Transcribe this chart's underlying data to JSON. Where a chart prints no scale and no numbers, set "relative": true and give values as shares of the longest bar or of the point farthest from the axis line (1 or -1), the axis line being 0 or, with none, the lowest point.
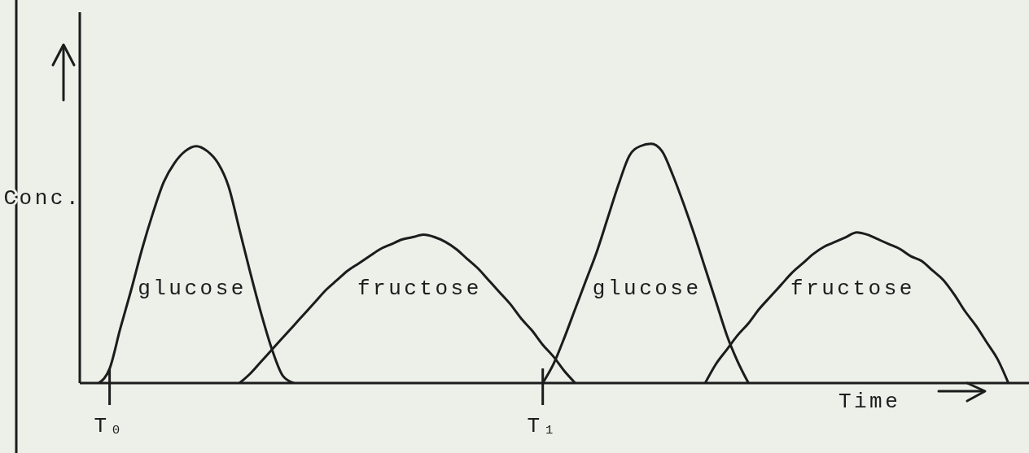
{
  "chart_data": {
    "type": "line",
    "relative": true,
    "ylabel": "Conc.",
    "xlabel": "Time",
    "legend": false,
    "marker": "none",
    "line_style": "solid",
    "categories": [
      null,
      null,
      "T₀",
      null,
      null,
      null,
      null,
      null,
      null,
      null,
      null,
      null,
      null,
      null,
      null,
      null,
      null,
      null,
      null,
      null,
      null,
      null,
      null,
      null,
      null,
      null,
      null,
      null,
      null,
      null,
      null,
      null,
      null,
      null,
      null,
      null,
      null,
      null,
      null,
      null,
      null,
      null,
      "T₁",
      null,
      null,
      null,
      null,
      null,
      null,
      null,
      null,
      null,
      null,
      null,
      null,
      null,
      null,
      null,
      null,
      null,
      null,
      null,
      null,
      null,
      null,
      null,
      null,
      null,
      null,
      null,
      null,
      null,
      null,
      null,
      null,
      null,
      null,
      null,
      null,
      null,
      null,
      null,
      null,
      null,
      null,
      null,
      null
    ],
    "series": [
      {
        "name": "glucose",
        "color": "#1c1c1c",
        "values": [
          null,
          0,
          0.06,
          0.23,
          0.39,
          0.56,
          0.71,
          0.84,
          0.92,
          0.97,
          0.99,
          0.97,
          0.92,
          0.82,
          0.64,
          0.46,
          0.29,
          0.14,
          0.03,
          0,
          null,
          null,
          null,
          null,
          null,
          null,
          null,
          null,
          null,
          null,
          null,
          null,
          null,
          null,
          null,
          null,
          null,
          null,
          null,
          null,
          null,
          null,
          null,
          null,
          null,
          null,
          null,
          null,
          null,
          null,
          null,
          null,
          null,
          null,
          null,
          null,
          null,
          null,
          null,
          null,
          null,
          null,
          null,
          null,
          null,
          null,
          null,
          null,
          null,
          null,
          null,
          null,
          null,
          null,
          null,
          null,
          null,
          null,
          null,
          null,
          null,
          null,
          null,
          null,
          null,
          null,
          null
        ]
      },
      {
        "name": "fructose",
        "color": "#1c1c1c",
        "values": [
          null,
          null,
          null,
          null,
          null,
          null,
          null,
          null,
          null,
          null,
          null,
          null,
          null,
          null,
          0,
          0.04,
          0.09,
          0.14,
          0.19,
          0.24,
          0.29,
          0.34,
          0.39,
          0.43,
          0.47,
          0.5,
          0.53,
          0.56,
          0.58,
          0.6,
          0.61,
          0.62,
          0.61,
          0.59,
          0.56,
          0.52,
          0.48,
          0.43,
          0.38,
          0.33,
          0.27,
          0.22,
          0.16,
          0.11,
          0.05,
          0,
          null,
          null,
          null,
          null,
          null,
          null,
          null,
          null,
          null,
          null,
          null,
          null,
          null,
          null,
          null,
          null,
          null,
          null,
          null,
          null,
          null,
          null,
          null,
          null,
          null,
          null,
          null,
          null,
          null,
          null,
          null,
          null,
          null,
          null,
          null,
          null,
          null,
          null,
          null,
          null,
          null
        ]
      },
      {
        "name": "glucose",
        "color": "#1c1c1c",
        "values": [
          null,
          null,
          null,
          null,
          null,
          null,
          null,
          null,
          null,
          null,
          null,
          null,
          null,
          null,
          null,
          null,
          null,
          null,
          null,
          null,
          null,
          null,
          null,
          null,
          null,
          null,
          null,
          null,
          null,
          null,
          null,
          null,
          null,
          null,
          null,
          null,
          null,
          null,
          null,
          null,
          null,
          null,
          0,
          0.08,
          0.19,
          0.31,
          0.43,
          0.55,
          0.69,
          0.83,
          0.95,
          0.99,
          1,
          0.97,
          0.87,
          0.75,
          0.62,
          0.48,
          0.34,
          0.2,
          0.09,
          0,
          null,
          null,
          null,
          null,
          null,
          null,
          null,
          null,
          null,
          null,
          null,
          null,
          null,
          null,
          null,
          null,
          null,
          null,
          null,
          null,
          null,
          null,
          null,
          null,
          null
        ]
      },
      {
        "name": "fructose",
        "color": "#1c1c1c",
        "values": [
          null,
          null,
          null,
          null,
          null,
          null,
          null,
          null,
          null,
          null,
          null,
          null,
          null,
          null,
          null,
          null,
          null,
          null,
          null,
          null,
          null,
          null,
          null,
          null,
          null,
          null,
          null,
          null,
          null,
          null,
          null,
          null,
          null,
          null,
          null,
          null,
          null,
          null,
          null,
          null,
          null,
          null,
          null,
          null,
          null,
          null,
          null,
          null,
          null,
          null,
          null,
          null,
          null,
          null,
          null,
          null,
          null,
          0,
          0.08,
          0.14,
          0.2,
          0.25,
          0.31,
          0.36,
          0.41,
          0.46,
          0.5,
          0.54,
          0.57,
          0.59,
          0.61,
          0.63,
          0.62,
          0.6,
          0.58,
          0.56,
          0.53,
          0.51,
          0.47,
          0.43,
          0.37,
          0.3,
          0.24,
          0.17,
          0.1,
          0,
          null
        ]
      }
    ]
  }
}
